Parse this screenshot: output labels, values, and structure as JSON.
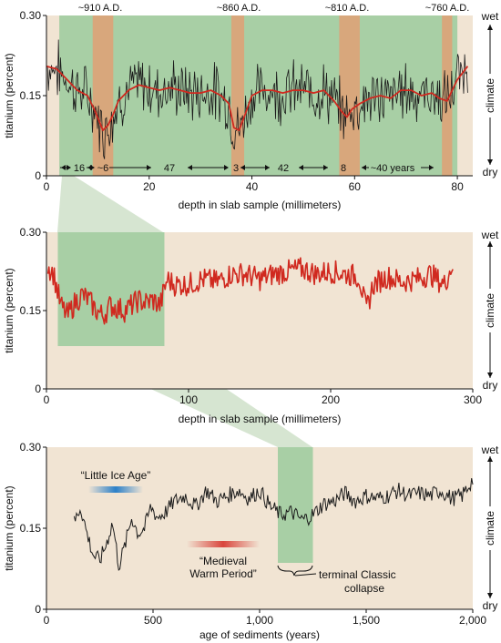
{
  "colors": {
    "panel_bg": "#f1e4d3",
    "green_band": "#a8cfa5",
    "orange_band": "#d8a77c",
    "red_line": "#d0291f",
    "black_line": "#1a1a1a",
    "connector": "#cfe0c9",
    "little_ice_age_bar": "#2c80c8",
    "medieval_bar": "#d9453c"
  },
  "panel1": {
    "title_labels": [
      "~910 A.D.",
      "~860 A.D.",
      "~810 A.D.",
      "~760 A.D."
    ],
    "ylabel": "titanium (percent)",
    "xlabel": "depth in slab sample (millimeters)",
    "yticks": [
      "0",
      "0.15",
      "0.30"
    ],
    "xticks": [
      "0",
      "20",
      "40",
      "60",
      "80"
    ],
    "right_axis": {
      "top": "wet",
      "middle": "climate",
      "bottom": "dry"
    },
    "intervals": [
      "16",
      "~6",
      "47",
      "3",
      "42",
      "8",
      "~40 years"
    ]
  },
  "panel2": {
    "ylabel": "titanium (percent)",
    "xlabel": "depth in slab sample (millimeters)",
    "yticks": [
      "0",
      "0.15",
      "0.30"
    ],
    "xticks": [
      "0",
      "100",
      "200",
      "300"
    ],
    "right_axis": {
      "top": "wet",
      "middle": "climate",
      "bottom": "dry"
    }
  },
  "panel3": {
    "ylabel": "titanium (percent)",
    "xlabel": "age of sediments (years)",
    "yticks": [
      "0",
      "0.15",
      "0.30"
    ],
    "xticks": [
      "0",
      "500",
      "1,000",
      "1,500",
      "2,000"
    ],
    "right_axis": {
      "top": "wet",
      "middle": "climate",
      "bottom": "dry"
    },
    "little_ice_age": "“Little Ice Age”",
    "medieval_1": "“Medieval",
    "medieval_2": "Warm Period”",
    "collapse_1": "terminal Classic",
    "collapse_2": "collapse"
  },
  "chart_data": [
    {
      "type": "line",
      "xlabel": "depth in slab sample (millimeters)",
      "ylabel": "titanium (percent)",
      "xlim": [
        0,
        83
      ],
      "ylim": [
        0,
        0.3
      ],
      "bands_green_x": [
        [
          2.5,
          80
        ]
      ],
      "bands_orange_x": [
        [
          9,
          13
        ],
        [
          36,
          38.5
        ],
        [
          57,
          61
        ],
        [
          77,
          79
        ]
      ],
      "band_labels": [
        "~910 A.D.",
        "~860 A.D.",
        "~810 A.D.",
        "~760 A.D."
      ],
      "series": [
        {
          "x": [
            0,
            2,
            4,
            6,
            8,
            9.5,
            11,
            12,
            13,
            14,
            16,
            18,
            20,
            22,
            24,
            26,
            28,
            30,
            32,
            34,
            35.5,
            36.5,
            37.5,
            38.5,
            40,
            42,
            44,
            46,
            48,
            50,
            52,
            54,
            56,
            57.5,
            58.5,
            59.5,
            61,
            63,
            65,
            67,
            69,
            71,
            73,
            75,
            76.5,
            78,
            80,
            82
          ],
          "values": [
            0.205,
            0.2,
            0.18,
            0.16,
            0.15,
            0.12,
            0.085,
            0.095,
            0.115,
            0.14,
            0.16,
            0.17,
            0.165,
            0.16,
            0.165,
            0.16,
            0.155,
            0.155,
            0.16,
            0.15,
            0.135,
            0.09,
            0.085,
            0.11,
            0.15,
            0.16,
            0.16,
            0.155,
            0.16,
            0.16,
            0.155,
            0.16,
            0.14,
            0.12,
            0.11,
            0.125,
            0.135,
            0.145,
            0.15,
            0.145,
            0.16,
            0.16,
            0.15,
            0.155,
            0.145,
            0.14,
            0.18,
            0.205
          ]
        }
      ]
    },
    {
      "type": "line",
      "xlabel": "depth in slab sample (millimeters)",
      "ylabel": "titanium (percent)",
      "xlim": [
        0,
        300
      ],
      "ylim": [
        0,
        0.3
      ],
      "bands_green_x": [
        [
          8,
          83
        ]
      ],
      "series": [
        {
          "x": [
            0,
            5,
            10,
            15,
            20,
            25,
            30,
            35,
            40,
            45,
            50,
            55,
            60,
            65,
            70,
            75,
            80,
            85,
            90,
            100,
            110,
            120,
            130,
            140,
            150,
            160,
            170,
            180,
            190,
            200,
            210,
            220,
            225,
            230,
            240,
            250,
            260,
            270,
            280,
            286
          ],
          "values": [
            0.24,
            0.22,
            0.16,
            0.14,
            0.165,
            0.18,
            0.17,
            0.15,
            0.14,
            0.16,
            0.155,
            0.15,
            0.16,
            0.17,
            0.165,
            0.17,
            0.16,
            0.21,
            0.2,
            0.2,
            0.21,
            0.205,
            0.22,
            0.22,
            0.21,
            0.22,
            0.225,
            0.23,
            0.22,
            0.225,
            0.22,
            0.215,
            0.15,
            0.2,
            0.215,
            0.205,
            0.21,
            0.22,
            0.2,
            0.24
          ]
        }
      ]
    },
    {
      "type": "line",
      "xlabel": "age of sediments (years)",
      "ylabel": "titanium (percent)",
      "xlim": [
        0,
        2000
      ],
      "ylim": [
        0,
        0.3
      ],
      "bands_green_x": [
        [
          1090,
          1250
        ]
      ],
      "series": [
        {
          "x": [
            130,
            160,
            190,
            220,
            250,
            280,
            310,
            340,
            370,
            400,
            430,
            460,
            490,
            520,
            560,
            600,
            650,
            700,
            750,
            800,
            850,
            900,
            950,
            1000,
            1050,
            1100,
            1150,
            1200,
            1250,
            1300,
            1350,
            1400,
            1450,
            1500,
            1550,
            1600,
            1650,
            1700,
            1750,
            1800,
            1850,
            1900,
            1950,
            2000
          ],
          "values": [
            0.16,
            0.19,
            0.14,
            0.1,
            0.09,
            0.12,
            0.16,
            0.08,
            0.12,
            0.17,
            0.14,
            0.15,
            0.19,
            0.17,
            0.18,
            0.2,
            0.21,
            0.19,
            0.22,
            0.2,
            0.21,
            0.22,
            0.205,
            0.22,
            0.19,
            0.175,
            0.18,
            0.165,
            0.175,
            0.195,
            0.2,
            0.215,
            0.2,
            0.21,
            0.205,
            0.21,
            0.22,
            0.21,
            0.215,
            0.21,
            0.22,
            0.205,
            0.21,
            0.24
          ]
        }
      ]
    }
  ]
}
